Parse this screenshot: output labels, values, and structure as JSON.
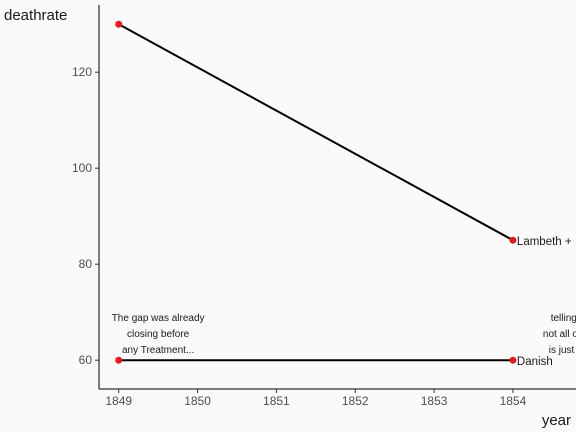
{
  "chart_data": {
    "type": "line",
    "xlabel": "year",
    "ylabel": "deathrate",
    "xlim": [
      1848.75,
      1854.8
    ],
    "ylim": [
      54,
      134
    ],
    "xticks": [
      1849,
      1850,
      1851,
      1852,
      1853,
      1854
    ],
    "yticks": [
      60,
      80,
      100,
      120
    ],
    "grid": false,
    "legend": "none",
    "series": [
      {
        "name": "Lambeth +",
        "x": [
          1849,
          1854
        ],
        "y": [
          130,
          85
        ],
        "color": "#000000",
        "point_color": "#e41a1c"
      },
      {
        "name": "Danish",
        "x": [
          1849,
          1854
        ],
        "y": [
          60,
          60
        ],
        "color": "#000000",
        "point_color": "#e41a1c"
      }
    ],
    "annotations": [
      {
        "x": 1849.5,
        "y": 60,
        "lines": [
          "The gap was already",
          "closing before",
          "any Treatment..."
        ]
      },
      {
        "x": 1854.8,
        "y": 60,
        "lines": [
          "telling us th",
          "not all of this cl",
          "is just Treatr"
        ]
      }
    ]
  }
}
